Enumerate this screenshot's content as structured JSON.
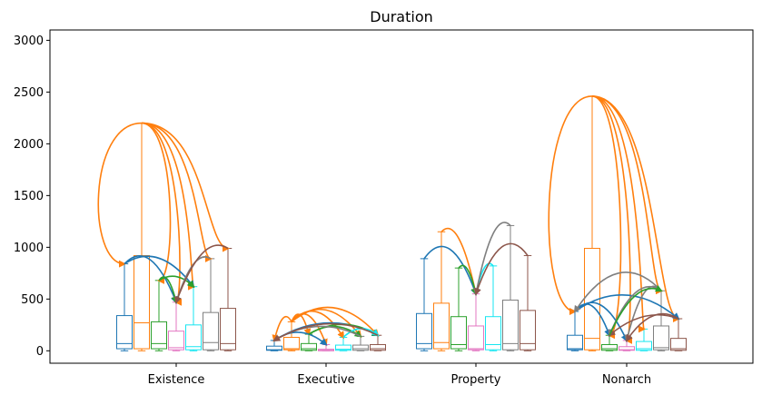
{
  "chart_data": {
    "type": "box",
    "title": "Duration",
    "xlabel": "",
    "ylabel": "",
    "categories": [
      "Existence",
      "Executive",
      "Property",
      "Nonarch"
    ],
    "ylim": [
      -120,
      3100
    ],
    "yticks": [
      0,
      500,
      1000,
      1500,
      2000,
      2500,
      3000
    ],
    "grid": false,
    "series_colors": [
      "#1f77b4",
      "#ff7f0e",
      "#2ca02c",
      "#e377c2",
      "#17e6f0",
      "#7f7f7f",
      "#8c564b"
    ],
    "boxes": [
      [
        {
          "min": 0,
          "q1": 20,
          "median": 70,
          "q3": 340,
          "max": 840
        },
        {
          "min": 0,
          "q1": 20,
          "median": 270,
          "q3": 920,
          "max": 2200
        },
        {
          "min": 0,
          "q1": 20,
          "median": 70,
          "q3": 280,
          "max": 680
        },
        {
          "min": 0,
          "q1": 10,
          "median": 30,
          "q3": 190,
          "max": 470
        },
        {
          "min": 0,
          "q1": 10,
          "median": 40,
          "q3": 250,
          "max": 620
        },
        {
          "min": 0,
          "q1": 10,
          "median": 80,
          "q3": 370,
          "max": 890
        },
        {
          "min": 0,
          "q1": 10,
          "median": 70,
          "q3": 410,
          "max": 990
        }
      ],
      [
        {
          "min": 0,
          "q1": 5,
          "median": 10,
          "q3": 45,
          "max": 100
        },
        {
          "min": 0,
          "q1": 10,
          "median": 20,
          "q3": 130,
          "max": 280
        },
        {
          "min": 0,
          "q1": 5,
          "median": 20,
          "q3": 70,
          "max": 160
        },
        {
          "min": 0,
          "q1": 0,
          "median": 5,
          "q3": 15,
          "max": 60
        },
        {
          "min": 0,
          "q1": 5,
          "median": 15,
          "q3": 55,
          "max": 130
        },
        {
          "min": 0,
          "q1": 5,
          "median": 20,
          "q3": 55,
          "max": 140
        },
        {
          "min": 0,
          "q1": 5,
          "median": 20,
          "q3": 60,
          "max": 150
        }
      ],
      [
        {
          "min": 0,
          "q1": 20,
          "median": 70,
          "q3": 360,
          "max": 890
        },
        {
          "min": 0,
          "q1": 20,
          "median": 80,
          "q3": 460,
          "max": 1150
        },
        {
          "min": 0,
          "q1": 20,
          "median": 60,
          "q3": 330,
          "max": 800
        },
        {
          "min": 0,
          "q1": 10,
          "median": 20,
          "q3": 240,
          "max": 550
        },
        {
          "min": 0,
          "q1": 10,
          "median": 60,
          "q3": 330,
          "max": 820
        },
        {
          "min": 0,
          "q1": 10,
          "median": 70,
          "q3": 490,
          "max": 1210
        },
        {
          "min": 0,
          "q1": 10,
          "median": 70,
          "q3": 390,
          "max": 920
        }
      ],
      [
        {
          "min": 0,
          "q1": 10,
          "median": 20,
          "q3": 150,
          "max": 380
        },
        {
          "min": 0,
          "q1": 10,
          "median": 120,
          "q3": 990,
          "max": 2460
        },
        {
          "min": 0,
          "q1": 5,
          "median": 20,
          "q3": 60,
          "max": 150
        },
        {
          "min": 0,
          "q1": 5,
          "median": 10,
          "q3": 40,
          "max": 100
        },
        {
          "min": 0,
          "q1": 5,
          "median": 20,
          "q3": 90,
          "max": 210
        },
        {
          "min": 0,
          "q1": 10,
          "median": 30,
          "q3": 240,
          "max": 580
        },
        {
          "min": 0,
          "q1": 5,
          "median": 20,
          "q3": 120,
          "max": 310
        }
      ]
    ]
  }
}
